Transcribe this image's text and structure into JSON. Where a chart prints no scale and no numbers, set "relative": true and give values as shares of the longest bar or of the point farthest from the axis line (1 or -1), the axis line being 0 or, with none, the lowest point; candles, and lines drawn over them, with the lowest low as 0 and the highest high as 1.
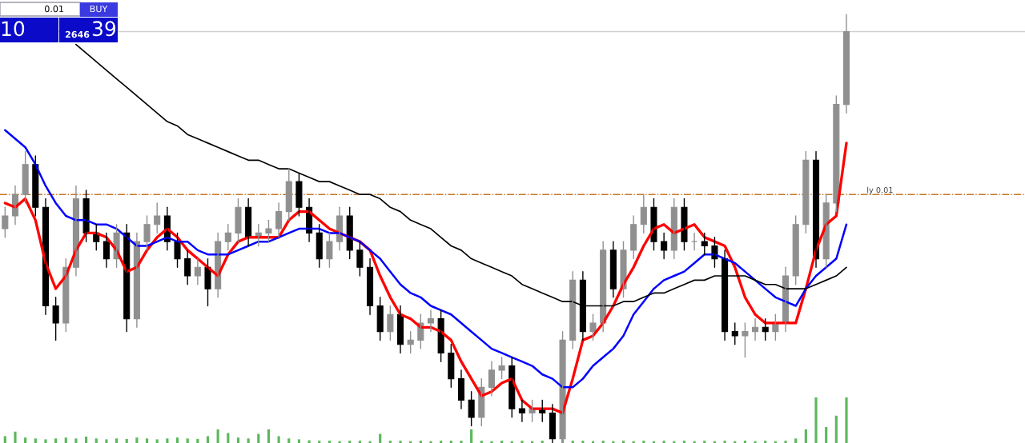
{
  "chart_data": [
    {
      "type": "candlestick",
      "relative": true,
      "grid": false,
      "legend": false,
      "categories": [
        null,
        null,
        null,
        null,
        null,
        null,
        null,
        null,
        null,
        null,
        null,
        null,
        null,
        null,
        null,
        null,
        null,
        null,
        null,
        null,
        null,
        null,
        null,
        null,
        null,
        null,
        null,
        null,
        null,
        null,
        null,
        null,
        null,
        null,
        null,
        null,
        null,
        null,
        null,
        null,
        null,
        null,
        null,
        null,
        null,
        null,
        null,
        null,
        null,
        null,
        null,
        null,
        null,
        null,
        null,
        null,
        null,
        null,
        null,
        null,
        null,
        null,
        null,
        null,
        null,
        null,
        null,
        null,
        null,
        null,
        null,
        null,
        null,
        null,
        null,
        null,
        null,
        null,
        null,
        null,
        null,
        null,
        null,
        null
      ],
      "ohlc": [
        [
          0.5,
          0.55,
          0.48,
          0.53
        ],
        [
          0.53,
          0.6,
          0.51,
          0.58
        ],
        [
          0.58,
          0.68,
          0.56,
          0.65
        ],
        [
          0.65,
          0.67,
          0.53,
          0.55
        ],
        [
          0.55,
          0.57,
          0.3,
          0.32
        ],
        [
          0.32,
          0.34,
          0.24,
          0.28
        ],
        [
          0.28,
          0.43,
          0.26,
          0.41
        ],
        [
          0.41,
          0.6,
          0.39,
          0.57
        ],
        [
          0.57,
          0.59,
          0.47,
          0.49
        ],
        [
          0.49,
          0.51,
          0.45,
          0.47
        ],
        [
          0.47,
          0.49,
          0.41,
          0.43
        ],
        [
          0.43,
          0.51,
          0.41,
          0.49
        ],
        [
          0.49,
          0.51,
          0.26,
          0.29
        ],
        [
          0.29,
          0.49,
          0.27,
          0.47
        ],
        [
          0.47,
          0.53,
          0.45,
          0.51
        ],
        [
          0.51,
          0.56,
          0.49,
          0.53
        ],
        [
          0.53,
          0.55,
          0.45,
          0.47
        ],
        [
          0.47,
          0.49,
          0.41,
          0.43
        ],
        [
          0.43,
          0.45,
          0.37,
          0.39
        ],
        [
          0.39,
          0.43,
          0.37,
          0.41
        ],
        [
          0.41,
          0.43,
          0.32,
          0.36
        ],
        [
          0.36,
          0.49,
          0.34,
          0.47
        ],
        [
          0.47,
          0.51,
          0.45,
          0.49
        ],
        [
          0.49,
          0.57,
          0.47,
          0.55
        ],
        [
          0.55,
          0.57,
          0.46,
          0.48
        ],
        [
          0.48,
          0.51,
          0.46,
          0.49
        ],
        [
          0.49,
          0.52,
          0.47,
          0.5
        ],
        [
          0.5,
          0.56,
          0.48,
          0.54
        ],
        [
          0.54,
          0.64,
          0.52,
          0.61
        ],
        [
          0.61,
          0.63,
          0.53,
          0.55
        ],
        [
          0.55,
          0.57,
          0.47,
          0.49
        ],
        [
          0.49,
          0.51,
          0.41,
          0.43
        ],
        [
          0.43,
          0.49,
          0.41,
          0.47
        ],
        [
          0.47,
          0.55,
          0.45,
          0.53
        ],
        [
          0.53,
          0.55,
          0.43,
          0.45
        ],
        [
          0.45,
          0.47,
          0.39,
          0.41
        ],
        [
          0.41,
          0.43,
          0.3,
          0.32
        ],
        [
          0.32,
          0.34,
          0.24,
          0.26
        ],
        [
          0.26,
          0.32,
          0.24,
          0.3
        ],
        [
          0.3,
          0.32,
          0.21,
          0.23
        ],
        [
          0.23,
          0.26,
          0.21,
          0.24
        ],
        [
          0.24,
          0.3,
          0.22,
          0.28
        ],
        [
          0.28,
          0.31,
          0.26,
          0.29
        ],
        [
          0.29,
          0.31,
          0.19,
          0.21
        ],
        [
          0.21,
          0.23,
          0.13,
          0.15
        ],
        [
          0.15,
          0.17,
          0.08,
          0.1
        ],
        [
          0.1,
          0.12,
          0.04,
          0.06
        ],
        [
          0.06,
          0.15,
          0.04,
          0.13
        ],
        [
          0.13,
          0.19,
          0.11,
          0.17
        ],
        [
          0.17,
          0.2,
          0.15,
          0.18
        ],
        [
          0.18,
          0.2,
          0.06,
          0.08
        ],
        [
          0.08,
          0.1,
          0.05,
          0.07
        ],
        [
          0.07,
          0.1,
          0.05,
          0.08
        ],
        [
          0.08,
          0.1,
          0.05,
          0.07
        ],
        [
          0.07,
          0.09,
          0.0,
          0.01
        ],
        [
          0.01,
          0.26,
          0.0,
          0.24
        ],
        [
          0.24,
          0.4,
          0.22,
          0.38
        ],
        [
          0.38,
          0.4,
          0.24,
          0.26
        ],
        [
          0.26,
          0.3,
          0.24,
          0.28
        ],
        [
          0.28,
          0.47,
          0.26,
          0.45
        ],
        [
          0.45,
          0.47,
          0.34,
          0.36
        ],
        [
          0.36,
          0.47,
          0.34,
          0.45
        ],
        [
          0.45,
          0.53,
          0.43,
          0.51
        ],
        [
          0.51,
          0.58,
          0.49,
          0.55
        ],
        [
          0.55,
          0.57,
          0.45,
          0.47
        ],
        [
          0.47,
          0.49,
          0.43,
          0.45
        ],
        [
          0.45,
          0.57,
          0.43,
          0.55
        ],
        [
          0.55,
          0.57,
          0.45,
          0.47
        ],
        [
          0.47,
          0.49,
          0.45,
          0.47
        ],
        [
          0.47,
          0.49,
          0.44,
          0.46
        ],
        [
          0.46,
          0.48,
          0.41,
          0.43
        ],
        [
          0.43,
          0.45,
          0.24,
          0.26
        ],
        [
          0.26,
          0.28,
          0.23,
          0.25
        ],
        [
          0.25,
          0.28,
          0.2,
          0.26
        ],
        [
          0.26,
          0.29,
          0.24,
          0.27
        ],
        [
          0.27,
          0.29,
          0.24,
          0.26
        ],
        [
          0.26,
          0.3,
          0.24,
          0.28
        ],
        [
          0.28,
          0.41,
          0.26,
          0.39
        ],
        [
          0.39,
          0.53,
          0.37,
          0.51
        ],
        [
          0.51,
          0.68,
          0.49,
          0.66
        ],
        [
          0.66,
          0.68,
          0.41,
          0.43
        ],
        [
          0.43,
          0.58,
          0.41,
          0.56
        ],
        [
          0.56,
          0.81,
          0.54,
          0.79
        ],
        [
          0.79,
          1.0,
          0.77,
          0.96
        ]
      ],
      "series": [
        {
          "type": "line",
          "color": "#ff0000",
          "values": [
            0.56,
            0.55,
            0.57,
            0.52,
            0.42,
            0.36,
            0.39,
            0.45,
            0.49,
            0.49,
            0.48,
            0.45,
            0.4,
            0.41,
            0.45,
            0.48,
            0.5,
            0.48,
            0.45,
            0.43,
            0.41,
            0.39,
            0.44,
            0.47,
            0.48,
            0.48,
            0.48,
            0.48,
            0.52,
            0.54,
            0.54,
            0.52,
            0.5,
            0.49,
            0.48,
            0.47,
            0.45,
            0.39,
            0.34,
            0.3,
            0.29,
            0.27,
            0.27,
            0.26,
            0.24,
            0.19,
            0.15,
            0.11,
            0.12,
            0.14,
            0.15,
            0.1,
            0.08,
            0.08,
            0.08,
            0.07,
            0.15,
            0.24,
            0.25,
            0.28,
            0.32,
            0.37,
            0.41,
            0.46,
            0.5,
            0.51,
            0.49,
            0.5,
            0.51,
            0.48,
            0.47,
            0.46,
            0.41,
            0.34,
            0.3,
            0.28,
            0.28,
            0.28,
            0.28,
            0.36,
            0.45,
            0.51,
            0.53,
            0.7
          ]
        },
        {
          "type": "line",
          "color": "#0000ff",
          "values": [
            0.73,
            0.71,
            0.69,
            0.65,
            0.6,
            0.56,
            0.53,
            0.52,
            0.52,
            0.51,
            0.51,
            0.5,
            0.48,
            0.46,
            0.46,
            0.47,
            0.48,
            0.47,
            0.47,
            0.45,
            0.44,
            0.44,
            0.44,
            0.45,
            0.46,
            0.47,
            0.47,
            0.48,
            0.49,
            0.5,
            0.5,
            0.5,
            0.49,
            0.49,
            0.48,
            0.47,
            0.45,
            0.43,
            0.4,
            0.37,
            0.35,
            0.34,
            0.32,
            0.31,
            0.3,
            0.28,
            0.26,
            0.24,
            0.22,
            0.21,
            0.2,
            0.19,
            0.18,
            0.16,
            0.15,
            0.13,
            0.13,
            0.15,
            0.18,
            0.2,
            0.22,
            0.25,
            0.3,
            0.33,
            0.36,
            0.38,
            0.39,
            0.4,
            0.42,
            0.44,
            0.44,
            0.43,
            0.42,
            0.4,
            0.38,
            0.36,
            0.34,
            0.33,
            0.32,
            0.36,
            0.39,
            0.41,
            0.43,
            0.51
          ]
        },
        {
          "type": "line",
          "color": "#000000",
          "values": [
            null,
            null,
            null,
            null,
            null,
            null,
            null,
            0.93,
            0.91,
            0.89,
            0.87,
            0.85,
            0.83,
            0.81,
            0.79,
            0.77,
            0.75,
            0.74,
            0.72,
            0.71,
            0.7,
            0.69,
            0.68,
            0.67,
            0.66,
            0.66,
            0.65,
            0.64,
            0.64,
            0.63,
            0.62,
            0.61,
            0.61,
            0.6,
            0.59,
            0.58,
            0.58,
            0.57,
            0.55,
            0.54,
            0.52,
            0.51,
            0.5,
            0.48,
            0.46,
            0.45,
            0.43,
            0.42,
            0.41,
            0.4,
            0.39,
            0.37,
            0.36,
            0.35,
            0.34,
            0.33,
            0.33,
            0.32,
            0.32,
            0.32,
            0.32,
            0.33,
            0.33,
            0.34,
            0.35,
            0.35,
            0.36,
            0.37,
            0.38,
            0.38,
            0.39,
            0.39,
            0.39,
            0.39,
            0.38,
            0.37,
            0.37,
            0.36,
            0.36,
            0.36,
            0.37,
            0.38,
            0.39,
            0.41
          ]
        }
      ],
      "ref_lines": [
        {
          "axis": "y",
          "value": 0.58,
          "label": "ly 0.01",
          "color": "#c87828",
          "line_style": "dashdot"
        },
        {
          "axis": "y",
          "value": 0.96,
          "color": "#d0d0d0",
          "line_style": "solid"
        }
      ],
      "annotations": [
        "0.01",
        "BUY",
        "10",
        "2646",
        "39"
      ]
    },
    {
      "type": "bar",
      "relative": true,
      "color": "#5cb85c",
      "categories": [
        null,
        null,
        null,
        null,
        null,
        null,
        null,
        null,
        null,
        null,
        null,
        null,
        null,
        null,
        null,
        null,
        null,
        null,
        null,
        null,
        null,
        null,
        null,
        null,
        null,
        null,
        null,
        null,
        null,
        null,
        null,
        null,
        null,
        null,
        null,
        null,
        null,
        null,
        null,
        null,
        null,
        null,
        null,
        null,
        null,
        null,
        null,
        null,
        null,
        null,
        null,
        null,
        null,
        null,
        null,
        null,
        null,
        null,
        null,
        null,
        null,
        null,
        null,
        null,
        null,
        null,
        null,
        null,
        null,
        null,
        null,
        null,
        null,
        null,
        null,
        null,
        null,
        null,
        null,
        null,
        null,
        null,
        null,
        null
      ],
      "values": [
        0.15,
        0.25,
        0.12,
        0.1,
        0.08,
        0.1,
        0.12,
        0.1,
        0.14,
        0.1,
        0.08,
        0.1,
        0.09,
        0.12,
        0.1,
        0.08,
        0.1,
        0.12,
        0.1,
        0.09,
        0.15,
        0.3,
        0.22,
        0.12,
        0.1,
        0.2,
        0.3,
        0.15,
        0.1,
        0.08,
        0.06,
        0.05,
        0.05,
        0.04,
        0.05,
        0.05,
        0.04,
        0.2,
        0.05,
        0.05,
        0.04,
        0.05,
        0.04,
        0.05,
        0.05,
        0.05,
        0.3,
        0.05,
        0.04,
        0.05,
        0.04,
        0.05,
        0.04,
        0.05,
        null,
        0.1,
        0.05,
        0.05,
        0.04,
        0.05,
        0.04,
        0.05,
        0.04,
        0.05,
        0.04,
        0.05,
        0.04,
        0.05,
        0.04,
        0.05,
        0.04,
        0.05,
        0.04,
        0.05,
        0.04,
        0.05,
        0.04,
        0.05,
        0.1,
        0.3,
        1.0,
        0.35,
        0.6,
        1.0
      ]
    }
  ]
}
